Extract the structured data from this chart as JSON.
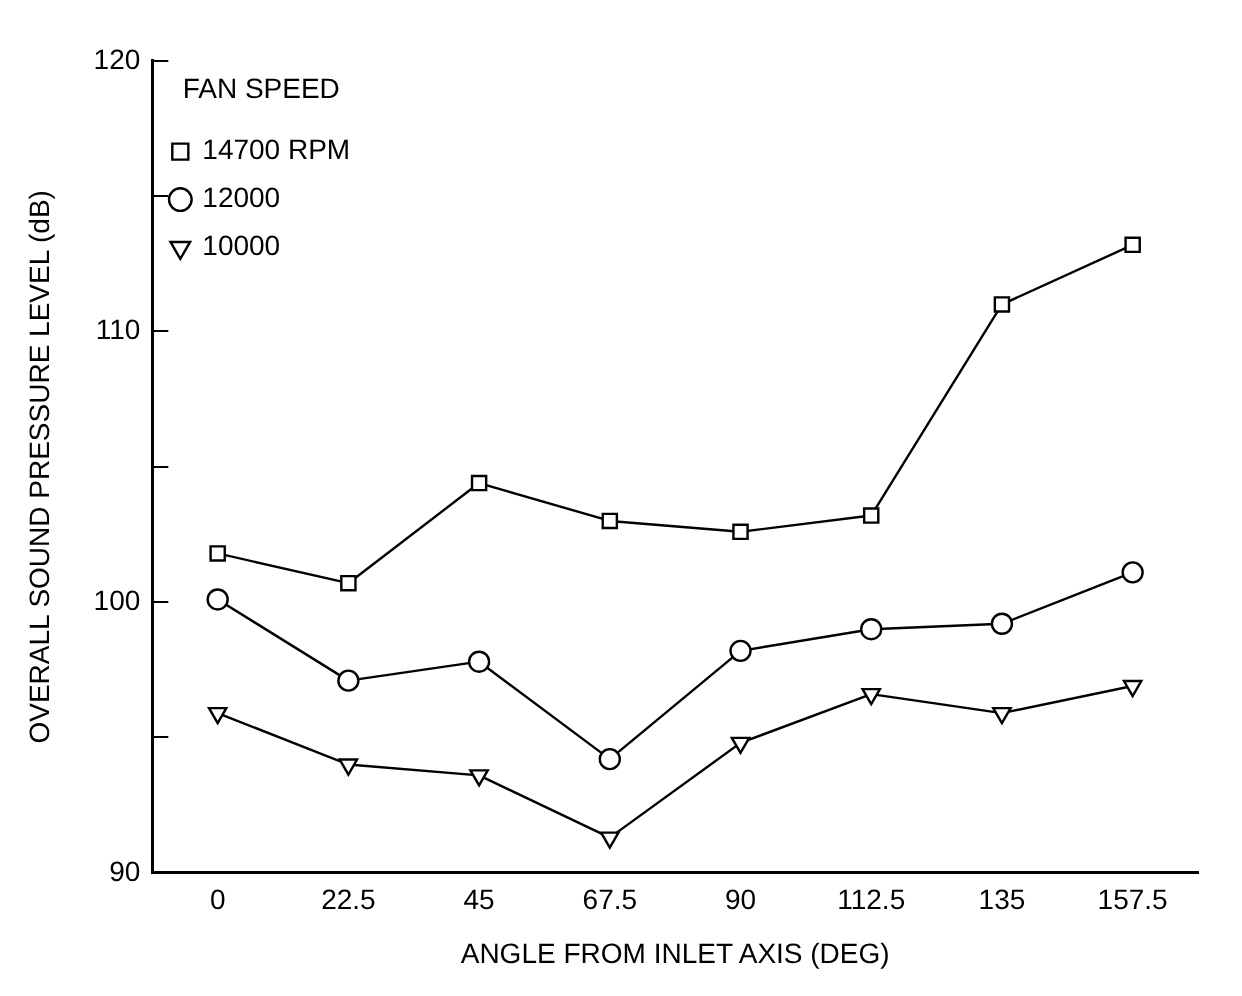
{
  "chart_data": {
    "type": "line",
    "xlabel": "ANGLE FROM INLET AXIS (DEG)",
    "ylabel": "OVERALL SOUND PRESSURE LEVEL (dB)",
    "legend_title": "FAN SPEED",
    "categories": [
      "0",
      "22.5",
      "45",
      "67.5",
      "90",
      "112.5",
      "135",
      "157.5"
    ],
    "series": [
      {
        "name": "14700 RPM",
        "color": "#000000",
        "marker": "square",
        "values": [
          101.8,
          100.7,
          104.4,
          103.0,
          102.6,
          103.2,
          111.0,
          113.2
        ]
      },
      {
        "name": "12000",
        "color": "#000000",
        "marker": "circle",
        "values": [
          100.1,
          97.1,
          97.8,
          94.2,
          98.2,
          99.0,
          99.2,
          101.1
        ]
      },
      {
        "name": "10000",
        "color": "#000000",
        "marker": "triangle-down",
        "values": [
          95.9,
          94.0,
          93.6,
          91.3,
          94.8,
          96.6,
          95.9,
          96.9
        ]
      }
    ],
    "ylim": [
      90,
      120
    ],
    "yticks": [
      90,
      {
        "value": 95,
        "label": null
      },
      100,
      {
        "value": 105,
        "label": null
      },
      110,
      {
        "value": 115,
        "label": null
      },
      120
    ],
    "grid": false,
    "legend": "top left",
    "line_style": "solid"
  }
}
